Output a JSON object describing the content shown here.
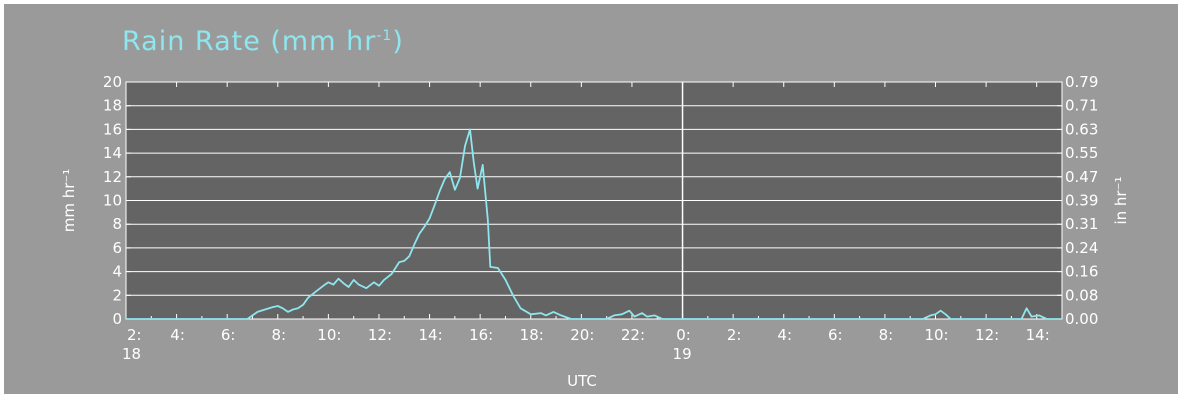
{
  "chart_data": {
    "type": "line",
    "title": "Rain Rate (mm hr⁻¹)",
    "title_main": "Rain Rate (mm hr",
    "title_sup": "-1",
    "title_close": ")",
    "xlabel": "UTC",
    "ylabel_left": "mm hr⁻¹",
    "ylabel_right": "in hr⁻¹",
    "ylim": [
      0,
      20
    ],
    "xlim_hours": [
      2,
      39
    ],
    "left_ticks": [
      "0",
      "2",
      "4",
      "6",
      "8",
      "10",
      "12",
      "14",
      "16",
      "18",
      "20"
    ],
    "right_ticks": [
      "0.00",
      "0.08",
      "0.16",
      "0.24",
      "0.31",
      "0.39",
      "0.47",
      "0.55",
      "0.63",
      "0.71",
      "0.79"
    ],
    "x_tick_labels": [
      "2:",
      "4:",
      "6:",
      "8:",
      "10:",
      "12:",
      "14:",
      "16:",
      "18:",
      "20:",
      "22:",
      "0:",
      "2:",
      "4:",
      "6:",
      "8:",
      "10:",
      "12:",
      "14:"
    ],
    "day_labels": [
      "18",
      "19"
    ],
    "grid": true,
    "colors": {
      "background": "#9a9a9a",
      "plot": "#646464",
      "line": "#8ee6ee",
      "grid": "#ffffff",
      "text": "#ffffff"
    },
    "series": [
      {
        "values": [
          [
            2,
            0
          ],
          [
            6.8,
            0
          ],
          [
            7.0,
            0.3
          ],
          [
            7.2,
            0.6
          ],
          [
            7.5,
            0.8
          ],
          [
            7.8,
            1.0
          ],
          [
            8.0,
            1.1
          ],
          [
            8.2,
            0.9
          ],
          [
            8.4,
            0.6
          ],
          [
            8.6,
            0.8
          ],
          [
            8.8,
            0.9
          ],
          [
            9.0,
            1.2
          ],
          [
            9.2,
            1.8
          ],
          [
            9.5,
            2.3
          ],
          [
            9.8,
            2.8
          ],
          [
            10.0,
            3.1
          ],
          [
            10.2,
            2.9
          ],
          [
            10.4,
            3.4
          ],
          [
            10.6,
            3.0
          ],
          [
            10.8,
            2.7
          ],
          [
            11.0,
            3.3
          ],
          [
            11.2,
            2.9
          ],
          [
            11.5,
            2.6
          ],
          [
            11.8,
            3.1
          ],
          [
            12.0,
            2.8
          ],
          [
            12.2,
            3.3
          ],
          [
            12.5,
            3.8
          ],
          [
            12.8,
            4.8
          ],
          [
            13.0,
            4.9
          ],
          [
            13.2,
            5.3
          ],
          [
            13.4,
            6.3
          ],
          [
            13.6,
            7.2
          ],
          [
            13.8,
            7.8
          ],
          [
            14.0,
            8.5
          ],
          [
            14.2,
            9.6
          ],
          [
            14.4,
            10.8
          ],
          [
            14.6,
            11.8
          ],
          [
            14.8,
            12.4
          ],
          [
            15.0,
            10.9
          ],
          [
            15.2,
            11.9
          ],
          [
            15.4,
            14.6
          ],
          [
            15.6,
            16.0
          ],
          [
            15.75,
            13.2
          ],
          [
            15.9,
            11.0
          ],
          [
            16.1,
            13.0
          ],
          [
            16.3,
            8.4
          ],
          [
            16.4,
            4.4
          ],
          [
            16.7,
            4.3
          ],
          [
            17.0,
            3.3
          ],
          [
            17.3,
            2.0
          ],
          [
            17.6,
            0.9
          ],
          [
            18.0,
            0.4
          ],
          [
            18.4,
            0.5
          ],
          [
            18.6,
            0.3
          ],
          [
            18.9,
            0.6
          ],
          [
            19.2,
            0.3
          ],
          [
            19.6,
            0.0
          ],
          [
            21.0,
            0.0
          ],
          [
            21.3,
            0.3
          ],
          [
            21.6,
            0.4
          ],
          [
            21.9,
            0.7
          ],
          [
            22.1,
            0.2
          ],
          [
            22.4,
            0.5
          ],
          [
            22.6,
            0.2
          ],
          [
            22.9,
            0.3
          ],
          [
            23.2,
            0.0
          ],
          [
            33.5,
            0.0
          ],
          [
            33.8,
            0.3
          ],
          [
            34.0,
            0.4
          ],
          [
            34.2,
            0.7
          ],
          [
            34.4,
            0.4
          ],
          [
            34.6,
            0.0
          ],
          [
            37.4,
            0.0
          ],
          [
            37.6,
            0.9
          ],
          [
            37.8,
            0.2
          ],
          [
            38.1,
            0.3
          ],
          [
            38.4,
            0.0
          ],
          [
            39,
            0.0
          ]
        ]
      }
    ]
  }
}
